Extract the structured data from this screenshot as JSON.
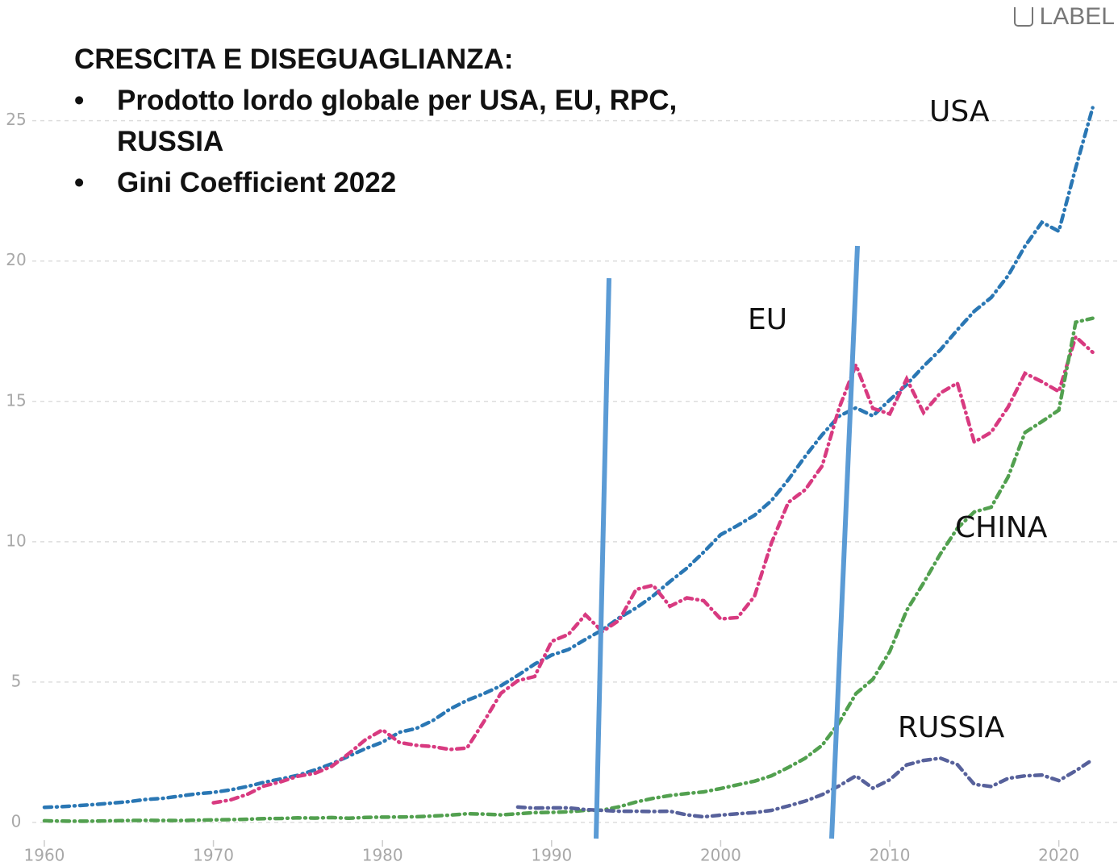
{
  "chart_data": {
    "type": "line",
    "title": "CRESCITA E DISEGUAGLIANZA:",
    "bullets": [
      "Prodotto lordo globale per USA, EU, RPC, RUSSIA",
      "Gini Coefficient 2022"
    ],
    "toggle_label": "LABEL",
    "x": [
      1960,
      1961,
      1962,
      1963,
      1964,
      1965,
      1966,
      1967,
      1968,
      1969,
      1970,
      1971,
      1972,
      1973,
      1974,
      1975,
      1976,
      1977,
      1978,
      1979,
      1980,
      1981,
      1982,
      1983,
      1984,
      1985,
      1986,
      1987,
      1988,
      1989,
      1990,
      1991,
      1992,
      1993,
      1994,
      1995,
      1996,
      1997,
      1998,
      1999,
      2000,
      2001,
      2002,
      2003,
      2004,
      2005,
      2006,
      2007,
      2008,
      2009,
      2010,
      2011,
      2012,
      2013,
      2014,
      2015,
      2016,
      2017,
      2018,
      2019,
      2020,
      2021,
      2022
    ],
    "series": [
      {
        "name": "USA",
        "color": "#2a77b4",
        "values": [
          0.54,
          0.56,
          0.6,
          0.64,
          0.69,
          0.74,
          0.82,
          0.86,
          0.94,
          1.02,
          1.07,
          1.16,
          1.28,
          1.43,
          1.55,
          1.68,
          1.87,
          2.09,
          2.36,
          2.63,
          2.86,
          3.21,
          3.35,
          3.64,
          4.04,
          4.35,
          4.59,
          4.87,
          5.24,
          5.64,
          5.96,
          6.16,
          6.52,
          6.86,
          7.29,
          7.64,
          8.07,
          8.58,
          9.06,
          9.63,
          10.25,
          10.58,
          10.94,
          11.46,
          12.21,
          13.04,
          13.81,
          14.47,
          14.77,
          14.48,
          15.05,
          15.6,
          16.25,
          16.84,
          17.55,
          18.21,
          18.7,
          19.48,
          20.53,
          21.38,
          21.06,
          23.32,
          25.46
        ]
      },
      {
        "name": "EU",
        "color": "#d83a80",
        "values": [
          null,
          null,
          null,
          null,
          null,
          null,
          null,
          null,
          null,
          null,
          0.7,
          0.8,
          1.0,
          1.3,
          1.45,
          1.65,
          1.75,
          2.0,
          2.45,
          2.95,
          3.3,
          2.85,
          2.75,
          2.7,
          2.6,
          2.65,
          3.6,
          4.6,
          5.05,
          5.2,
          6.45,
          6.7,
          7.4,
          6.8,
          7.2,
          8.3,
          8.45,
          7.7,
          8.0,
          7.9,
          7.25,
          7.3,
          8.05,
          9.95,
          11.4,
          11.85,
          12.7,
          14.75,
          16.3,
          14.75,
          14.55,
          15.8,
          14.6,
          15.3,
          15.65,
          13.55,
          13.9,
          14.8,
          16.0,
          15.7,
          15.35,
          17.3,
          16.75
        ]
      },
      {
        "name": "CHINA",
        "color": "#52a04f",
        "values": [
          0.06,
          0.05,
          0.047,
          0.05,
          0.059,
          0.07,
          0.076,
          0.072,
          0.07,
          0.079,
          0.093,
          0.1,
          0.114,
          0.139,
          0.144,
          0.163,
          0.154,
          0.175,
          0.15,
          0.18,
          0.19,
          0.196,
          0.205,
          0.23,
          0.26,
          0.31,
          0.3,
          0.27,
          0.31,
          0.35,
          0.36,
          0.38,
          0.43,
          0.44,
          0.56,
          0.73,
          0.86,
          0.96,
          1.03,
          1.09,
          1.21,
          1.34,
          1.47,
          1.66,
          1.96,
          2.29,
          2.75,
          3.55,
          4.59,
          5.1,
          6.09,
          7.55,
          8.53,
          9.57,
          10.48,
          11.06,
          11.23,
          12.31,
          13.89,
          14.28,
          14.69,
          17.82,
          17.96
        ]
      },
      {
        "name": "RUSSIA",
        "color": "#57619b",
        "values": [
          null,
          null,
          null,
          null,
          null,
          null,
          null,
          null,
          null,
          null,
          null,
          null,
          null,
          null,
          null,
          null,
          null,
          null,
          null,
          null,
          null,
          null,
          null,
          null,
          null,
          null,
          null,
          null,
          0.55,
          0.51,
          0.52,
          0.52,
          0.46,
          0.43,
          0.4,
          0.4,
          0.39,
          0.4,
          0.27,
          0.2,
          0.26,
          0.31,
          0.35,
          0.43,
          0.59,
          0.76,
          0.99,
          1.3,
          1.66,
          1.22,
          1.52,
          2.05,
          2.21,
          2.29,
          2.06,
          1.36,
          1.28,
          1.57,
          1.66,
          1.69,
          1.49,
          1.84,
          2.24
        ]
      }
    ],
    "xlim": [
      1959,
      2023.5
    ],
    "xticks": [
      1960,
      1970,
      1980,
      1990,
      2000,
      2010,
      2020
    ],
    "ylim": [
      0,
      27
    ],
    "yticks": [
      0,
      5,
      10,
      15,
      20,
      25
    ],
    "grid": true
  }
}
